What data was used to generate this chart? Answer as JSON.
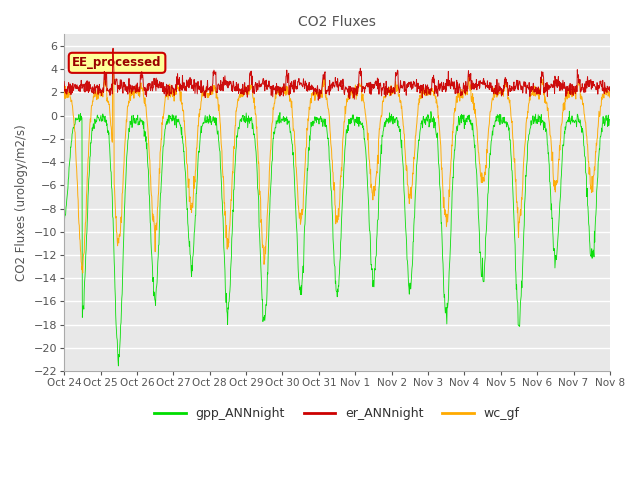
{
  "title": "CO2 Fluxes",
  "ylabel": "CO2 Fluxes (urology/m2/s)",
  "ylim": [
    -22,
    7
  ],
  "yticks": [
    6,
    4,
    2,
    0,
    -2,
    -4,
    -6,
    -8,
    -10,
    -12,
    -14,
    -16,
    -18,
    -20,
    -22
  ],
  "x_labels": [
    "Oct 24",
    "Oct 25",
    "Oct 26",
    "Oct 27",
    "Oct 28",
    "Oct 29",
    "Oct 30",
    "Oct 31",
    "Nov 1",
    "Nov 2",
    "Nov 3",
    "Nov 4",
    "Nov 5",
    "Nov 6",
    "Nov 7",
    "Nov 8"
  ],
  "annotation_text": "EE_processed",
  "annotation_bg": "#ffff99",
  "annotation_border": "#cc0000",
  "gpp_color": "#00dd00",
  "er_color": "#cc0000",
  "wc_color": "#ffaa00",
  "plot_bg": "#e8e8e8",
  "legend_labels": [
    "gpp_ANNnight",
    "er_ANNnight",
    "wc_gf"
  ],
  "num_days": 15,
  "points_per_day": 96
}
